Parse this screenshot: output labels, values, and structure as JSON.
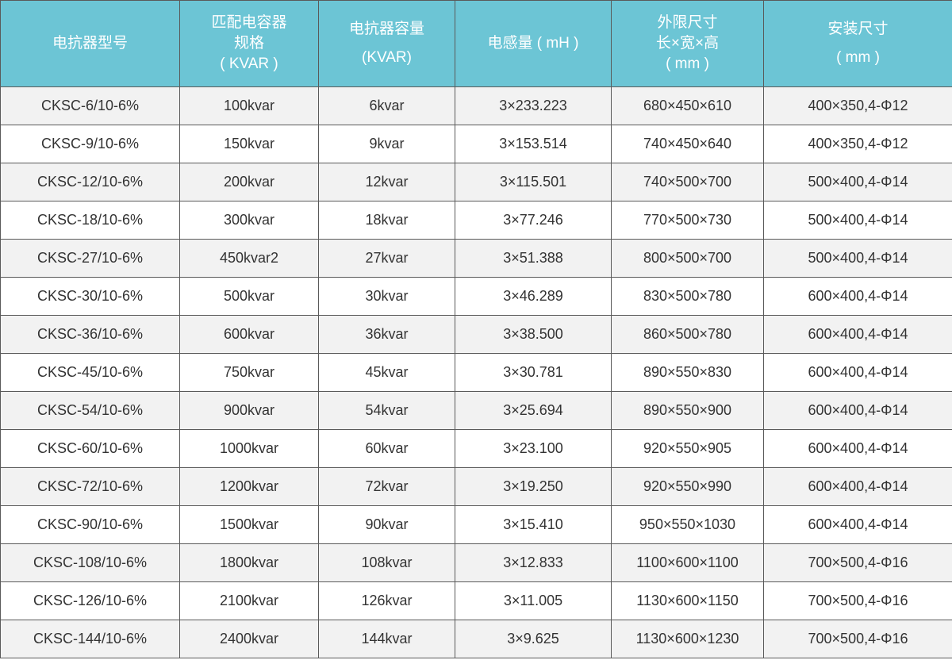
{
  "header": {
    "col1": [
      "电抗器型号"
    ],
    "col2": [
      "匹配电容器",
      "规格",
      "( KVAR )"
    ],
    "col3": [
      "电抗器容量",
      "(KVAR)"
    ],
    "col4": [
      "电感量 ( mH )"
    ],
    "col5": [
      "外限尺寸",
      "长×宽×高",
      "( mm )"
    ],
    "col6": [
      "安装尺寸",
      "( mm )"
    ]
  },
  "colors": {
    "header_bg": "#6cc5d5",
    "row_alt": "#f2f2f2",
    "border": "#5a5a5a"
  },
  "rows": [
    [
      "CKSC-6/10-6%",
      "100kvar",
      "6kvar",
      "3×233.223",
      "680×450×610",
      "400×350,4-Φ12"
    ],
    [
      "CKSC-9/10-6%",
      "150kvar",
      "9kvar",
      "3×153.514",
      "740×450×640",
      "400×350,4-Φ12"
    ],
    [
      "CKSC-12/10-6%",
      "200kvar",
      "12kvar",
      "3×115.501",
      "740×500×700",
      "500×400,4-Φ14"
    ],
    [
      "CKSC-18/10-6%",
      "300kvar",
      "18kvar",
      "3×77.246",
      "770×500×730",
      "500×400,4-Φ14"
    ],
    [
      "CKSC-27/10-6%",
      "450kvar2",
      "27kvar",
      "3×51.388",
      "800×500×700",
      "500×400,4-Φ14"
    ],
    [
      "CKSC-30/10-6%",
      "500kvar",
      "30kvar",
      "3×46.289",
      "830×500×780",
      "600×400,4-Φ14"
    ],
    [
      "CKSC-36/10-6%",
      "600kvar",
      "36kvar",
      "3×38.500",
      "860×500×780",
      "600×400,4-Φ14"
    ],
    [
      "CKSC-45/10-6%",
      "750kvar",
      "45kvar",
      "3×30.781",
      "890×550×830",
      "600×400,4-Φ14"
    ],
    [
      "CKSC-54/10-6%",
      "900kvar",
      "54kvar",
      "3×25.694",
      "890×550×900",
      "600×400,4-Φ14"
    ],
    [
      "CKSC-60/10-6%",
      "1000kvar",
      "60kvar",
      "3×23.100",
      "920×550×905",
      "600×400,4-Φ14"
    ],
    [
      "CKSC-72/10-6%",
      "1200kvar",
      "72kvar",
      "3×19.250",
      "920×550×990",
      "600×400,4-Φ14"
    ],
    [
      "CKSC-90/10-6%",
      "1500kvar",
      "90kvar",
      "3×15.410",
      "950×550×1030",
      "600×400,4-Φ14"
    ],
    [
      "CKSC-108/10-6%",
      "1800kvar",
      "108kvar",
      "3×12.833",
      "1100×600×1100",
      "700×500,4-Φ16"
    ],
    [
      "CKSC-126/10-6%",
      "2100kvar",
      "126kvar",
      "3×11.005",
      "1130×600×1150",
      "700×500,4-Φ16"
    ],
    [
      "CKSC-144/10-6%",
      "2400kvar",
      "144kvar",
      "3×9.625",
      "1130×600×1230",
      "700×500,4-Φ16"
    ]
  ]
}
